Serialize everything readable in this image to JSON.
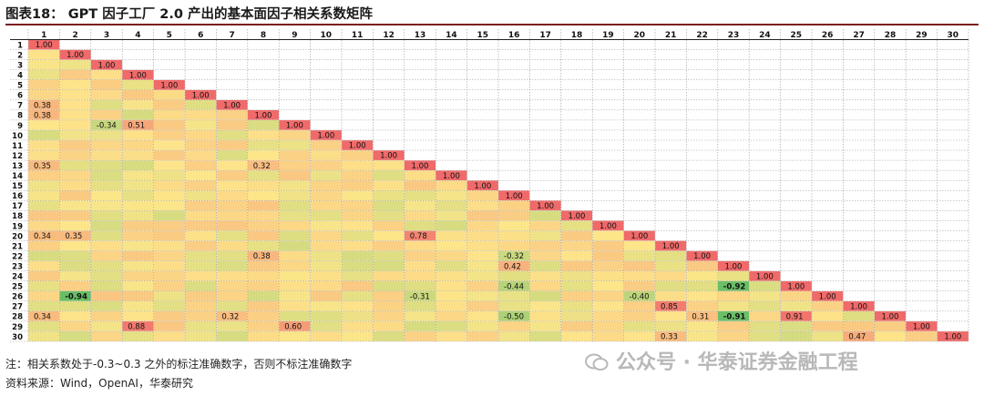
{
  "title": "图表18： GPT 因子工厂 2.0 产出的基本面因子相关系数矩阵",
  "notes": [
    "注：相关系数处于-0.3~0.3 之外的标注准确数字，否则不标注准确数字",
    "资料来源：Wind，OpenAI，华泰研究"
  ],
  "watermark": "公众号 · 华泰证券金融工程",
  "chart_data": {
    "type": "heatmap",
    "size": 30,
    "labels": [
      "1",
      "2",
      "3",
      "4",
      "5",
      "6",
      "7",
      "8",
      "9",
      "10",
      "11",
      "12",
      "13",
      "14",
      "15",
      "16",
      "17",
      "18",
      "19",
      "20",
      "21",
      "22",
      "23",
      "24",
      "25",
      "26",
      "27",
      "28",
      "29",
      "30"
    ],
    "annotated_values": [
      {
        "row": 7,
        "col": 1,
        "value": 0.38
      },
      {
        "row": 8,
        "col": 1,
        "value": 0.38
      },
      {
        "row": 9,
        "col": 3,
        "value": -0.34
      },
      {
        "row": 9,
        "col": 4,
        "value": 0.51
      },
      {
        "row": 13,
        "col": 1,
        "value": 0.35
      },
      {
        "row": 13,
        "col": 8,
        "value": 0.32
      },
      {
        "row": 20,
        "col": 1,
        "value": 0.34
      },
      {
        "row": 20,
        "col": 2,
        "value": 0.35
      },
      {
        "row": 20,
        "col": 13,
        "value": 0.78
      },
      {
        "row": 22,
        "col": 8,
        "value": 0.38
      },
      {
        "row": 22,
        "col": 16,
        "value": -0.32
      },
      {
        "row": 23,
        "col": 16,
        "value": 0.42
      },
      {
        "row": 25,
        "col": 16,
        "value": -0.44
      },
      {
        "row": 25,
        "col": 23,
        "value": -0.92
      },
      {
        "row": 26,
        "col": 2,
        "value": -0.94
      },
      {
        "row": 26,
        "col": 13,
        "value": -0.31
      },
      {
        "row": 26,
        "col": 20,
        "value": -0.4
      },
      {
        "row": 27,
        "col": 21,
        "value": 0.85
      },
      {
        "row": 28,
        "col": 1,
        "value": 0.34
      },
      {
        "row": 28,
        "col": 7,
        "value": 0.32
      },
      {
        "row": 28,
        "col": 16,
        "value": -0.5
      },
      {
        "row": 28,
        "col": 22,
        "value": 0.31
      },
      {
        "row": 28,
        "col": 23,
        "value": -0.91
      },
      {
        "row": 28,
        "col": 25,
        "value": 0.91
      },
      {
        "row": 29,
        "col": 4,
        "value": 0.88
      },
      {
        "row": 29,
        "col": 9,
        "value": 0.6
      },
      {
        "row": 30,
        "col": 21,
        "value": 0.33
      },
      {
        "row": 30,
        "col": 27,
        "value": 0.47
      }
    ],
    "diagonal_value": 1.0,
    "diagonal_label": "1.00",
    "color_scale": {
      "negative": "#5dbb63",
      "zero": "#fde68a",
      "positive": "#f06a6a"
    },
    "colors": {
      "accent_rule": "#7a1f1f",
      "grid": "#9a9a9a",
      "label_band": "#ffffff"
    }
  }
}
